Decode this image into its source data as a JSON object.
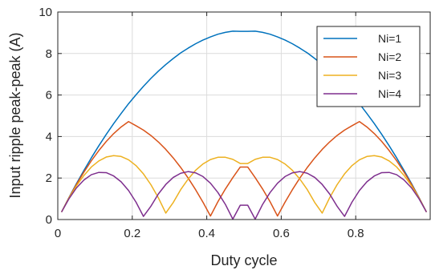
{
  "chart_data": {
    "type": "line",
    "title": "",
    "xlabel": "Duty cycle",
    "ylabel": "Input ripple peak-peak (A)",
    "xlim": [
      0,
      1
    ],
    "ylim": [
      0,
      10
    ],
    "xticks": [
      0,
      0.2,
      0.4,
      0.6,
      0.8
    ],
    "xtick_labels": [
      "0",
      "0.2",
      "0.4",
      "0.6",
      "0.8"
    ],
    "yticks": [
      0,
      2,
      4,
      6,
      8,
      10
    ],
    "ytick_labels": [
      "0",
      "2",
      "4",
      "6",
      "8",
      "10"
    ],
    "grid": true,
    "legend_position": "top-right",
    "x": [
      0.01,
      0.03,
      0.05,
      0.07,
      0.09,
      0.11,
      0.13,
      0.15,
      0.17,
      0.19,
      0.21,
      0.23,
      0.25,
      0.27,
      0.29,
      0.31,
      0.33,
      0.35,
      0.37,
      0.39,
      0.41,
      0.43,
      0.45,
      0.47,
      0.49,
      0.51,
      0.53,
      0.55,
      0.57,
      0.59,
      0.61,
      0.63,
      0.65,
      0.67,
      0.69,
      0.71,
      0.73,
      0.75,
      0.77,
      0.79,
      0.81,
      0.83,
      0.85,
      0.87,
      0.89,
      0.91,
      0.93,
      0.95,
      0.97,
      0.99
    ],
    "series": [
      {
        "name": "Ni=1",
        "color": "#0072BD",
        "values": [
          0.36,
          1.06,
          1.73,
          2.36,
          2.97,
          3.55,
          4.1,
          4.62,
          5.11,
          5.58,
          6.01,
          6.42,
          6.8,
          7.15,
          7.47,
          7.76,
          8.03,
          8.26,
          8.47,
          8.65,
          8.8,
          8.93,
          9.02,
          9.08,
          9.07,
          9.07,
          9.08,
          9.02,
          8.93,
          8.8,
          8.65,
          8.47,
          8.26,
          8.03,
          7.76,
          7.47,
          7.15,
          6.8,
          6.42,
          6.01,
          5.58,
          5.11,
          4.62,
          4.1,
          3.55,
          2.97,
          2.36,
          1.73,
          1.06,
          0.36
        ]
      },
      {
        "name": "Ni=2",
        "color": "#D95319",
        "values": [
          0.36,
          1.05,
          1.69,
          2.28,
          2.83,
          3.32,
          3.76,
          4.14,
          4.46,
          4.72,
          4.52,
          4.31,
          4.05,
          3.74,
          3.38,
          2.97,
          2.51,
          2.0,
          1.44,
          0.83,
          0.17,
          0.86,
          1.47,
          2.02,
          2.53,
          2.53,
          2.02,
          1.47,
          0.86,
          0.17,
          0.83,
          1.44,
          2.0,
          2.51,
          2.97,
          3.38,
          3.74,
          4.05,
          4.31,
          4.52,
          4.72,
          4.46,
          4.14,
          3.76,
          3.32,
          2.83,
          2.28,
          1.69,
          1.05,
          0.36
        ]
      },
      {
        "name": "Ni=3",
        "color": "#EDB120",
        "values": [
          0.36,
          1.03,
          1.62,
          2.12,
          2.53,
          2.82,
          3.01,
          3.08,
          3.04,
          2.88,
          2.6,
          2.2,
          1.68,
          1.05,
          0.31,
          0.82,
          1.44,
          1.95,
          2.37,
          2.68,
          2.89,
          3.0,
          3.0,
          2.9,
          2.7,
          2.7,
          2.9,
          3.0,
          3.0,
          2.89,
          2.68,
          2.37,
          1.95,
          1.44,
          0.82,
          0.31,
          1.05,
          1.68,
          2.2,
          2.6,
          2.88,
          3.04,
          3.08,
          3.01,
          2.82,
          2.53,
          2.12,
          1.62,
          1.03,
          0.36
        ]
      },
      {
        "name": "Ni=4",
        "color": "#7E2F8E",
        "values": [
          0.36,
          1.0,
          1.52,
          1.9,
          2.16,
          2.27,
          2.26,
          2.1,
          1.82,
          1.4,
          0.84,
          0.15,
          0.64,
          1.23,
          1.69,
          2.03,
          2.23,
          2.31,
          2.25,
          2.07,
          1.75,
          1.3,
          0.73,
          0.02,
          0.69,
          0.69,
          0.02,
          0.73,
          1.3,
          1.75,
          2.07,
          2.25,
          2.31,
          2.23,
          2.03,
          1.69,
          1.23,
          0.64,
          0.15,
          0.84,
          1.4,
          1.82,
          2.1,
          2.26,
          2.27,
          2.16,
          1.9,
          1.52,
          1.0,
          0.36
        ]
      }
    ]
  }
}
